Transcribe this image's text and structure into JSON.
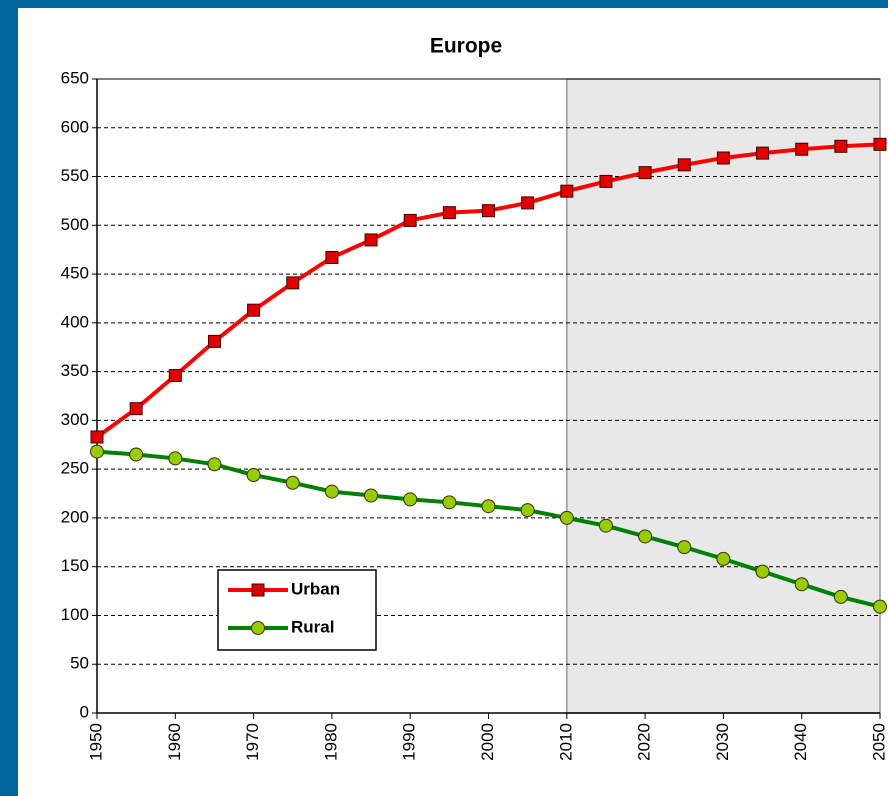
{
  "chart_data": {
    "type": "line",
    "title": "Europe",
    "x": [
      1950,
      1955,
      1960,
      1965,
      1970,
      1975,
      1980,
      1985,
      1990,
      1995,
      2000,
      2005,
      2010,
      2015,
      2020,
      2025,
      2030,
      2035,
      2040,
      2045,
      2050
    ],
    "series": [
      {
        "name": "Urban",
        "color": "#ff0000",
        "marker": "square",
        "marker_color": "#e00000",
        "values": [
          283,
          312,
          346,
          381,
          413,
          441,
          467,
          485,
          505,
          513,
          515,
          523,
          535,
          545,
          554,
          562,
          569,
          574,
          578,
          581,
          583
        ]
      },
      {
        "name": "Rural",
        "color": "#008000",
        "marker": "circle",
        "marker_color": "#99cc00",
        "values": [
          268,
          265,
          261,
          255,
          244,
          236,
          227,
          223,
          219,
          216,
          212,
          208,
          200,
          192,
          181,
          170,
          158,
          145,
          132,
          119,
          109
        ]
      }
    ],
    "xlim": [
      1950,
      2050
    ],
    "xticks": [
      1950,
      1960,
      1970,
      1980,
      1990,
      2000,
      2010,
      2020,
      2030,
      2040,
      2050
    ],
    "ylim": [
      0,
      650
    ],
    "yticks": [
      0,
      50,
      100,
      150,
      200,
      250,
      300,
      350,
      400,
      450,
      500,
      550,
      600,
      650
    ],
    "shaded_x": [
      2010,
      2050
    ],
    "grid": true,
    "legend": "lower left"
  }
}
